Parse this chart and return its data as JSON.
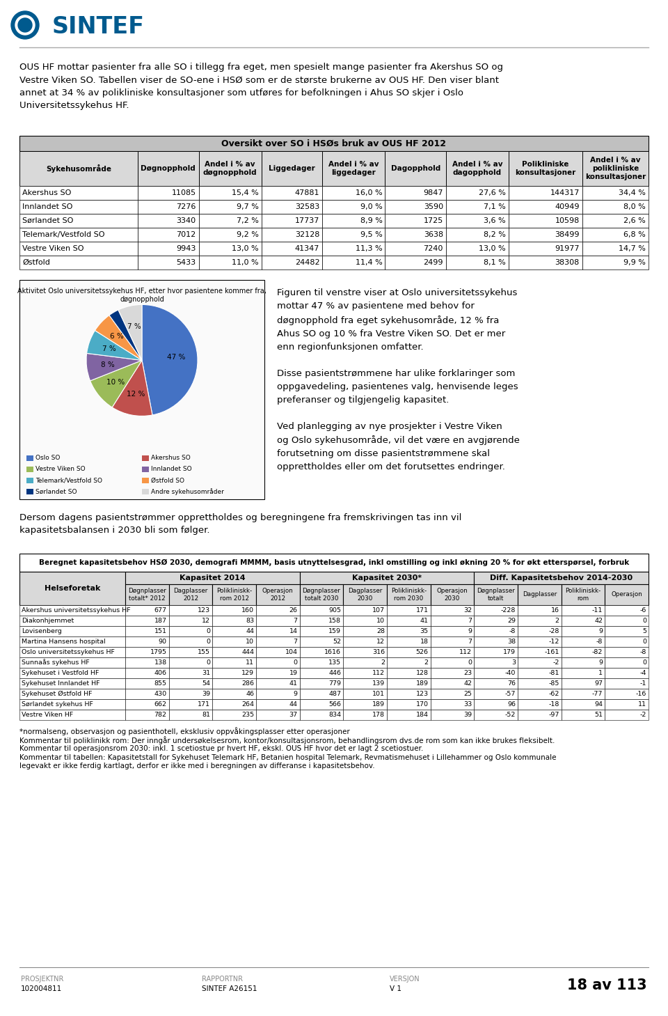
{
  "page_bg": "#ffffff",
  "intro_text": "OUS HF mottar pasienter fra alle SO i tillegg fra eget, men spesielt mange pasienter fra Akershus SO og\nVestre Viken SO. Tabellen viser de SO-ene i HSØ som er de største brukerne av OUS HF. Den viser blant\nannet at 34 % av polikliniske konsultasjoner som utføres for befolkningen i Ahus SO skjer i Oslo\nUniversitetssykehus HF.",
  "table1_title": "Oversikt over SO i HSØs bruk av OUS HF 2012",
  "table1_headers": [
    "Sykehusområde",
    "Døgnopphold",
    "Andel i % av\ndøgnopphold",
    "Liggedager",
    "Andel i % av\nliggedager",
    "Dagopphold",
    "Andel i % av\ndagopphold",
    "Polikliniske\nkonsultasjoner",
    "Andel i % av\npolikliniske\nkonsultasjoner"
  ],
  "table1_rows": [
    [
      "Akershus SO",
      "11085",
      "15,4 %",
      "47881",
      "16,0 %",
      "9847",
      "27,6 %",
      "144317",
      "34,4 %"
    ],
    [
      "Innlandet SO",
      "7276",
      "9,7 %",
      "32583",
      "9,0 %",
      "3590",
      "7,1 %",
      "40949",
      "8,0 %"
    ],
    [
      "Sørlandet SO",
      "3340",
      "7,2 %",
      "17737",
      "8,9 %",
      "1725",
      "3,6 %",
      "10598",
      "2,6 %"
    ],
    [
      "Telemark/Vestfold SO",
      "7012",
      "9,2 %",
      "32128",
      "9,5 %",
      "3638",
      "8,2 %",
      "38499",
      "6,8 %"
    ],
    [
      "Vestre Viken SO",
      "9943",
      "13,0 %",
      "41347",
      "11,3 %",
      "7240",
      "13,0 %",
      "91977",
      "14,7 %"
    ],
    [
      "Østfold",
      "5433",
      "11,0 %",
      "24482",
      "11,4 %",
      "2499",
      "8,1 %",
      "38308",
      "9,9 %"
    ]
  ],
  "pie_title": "Aktivitet Oslo universitetssykehus HF, etter hvor pasientene kommer fra,\ndøgnopphold",
  "pie_labels": [
    "Oslo SO",
    "Akershus SO",
    "Vestre Viken SO",
    "Innlandet SO",
    "Telemark/Vestfold SO",
    "Østfold SO",
    "Sørlandet SO",
    "Andre sykehusområder"
  ],
  "pie_values": [
    47,
    12,
    10,
    8,
    7,
    6,
    3,
    7
  ],
  "pie_colors": [
    "#4472C4",
    "#C0504D",
    "#9BBB59",
    "#8064A2",
    "#4BACC6",
    "#F79646",
    "#003580",
    "#D9D9D9"
  ],
  "pie_right_text": "Figuren til venstre viser at Oslo universitetssykehus\nmottar 47 % av pasientene med behov for\ndøgnopphold fra eget sykehusområde, 12 % fra\nAhus SO og 10 % fra Vestre Viken SO. Det er mer\nenn regionfunksjonen omfatter.\n\nDisse pasientstrømmene har ulike forklaringer som\noppgavedeling, pasientenes valg, henvisende leges\npreferanser og tilgjengelig kapasitet.\n\nVed planlegging av nye prosjekter i Vestre Viken\nog Oslo sykehusområde, vil det være en avgjørende\nforutsetning om disse pasientstrømmene skal\nopprettholdes eller om det forutsettes endringer.",
  "bottom_text": "Dersom dagens pasientstrømmer opprettholdes og beregningene fra fremskrivingen tas inn vil\nkapasitetsbalansen i 2030 bli som følger.",
  "table2_title": "Beregnet kapasitetsbehov HSØ 2030, demografi MMMM, basis utnyttelsesgrad, inkl omstilling og inkl økning 20 % for økt etterspørsel, forbruk",
  "table2_col_groups": [
    "Kapasitet 2014",
    "Kapasitet 2030*",
    "Diff. Kapasitetsbehov 2014-2030"
  ],
  "table2_sub_headers": [
    "Døgnplasser\ntotalt* 2012",
    "Dagplasser\n2012",
    "Polikliniskk-\nrom 2012",
    "Operasjon\n2012",
    "Døgnplasser\ntotalt 2030",
    "Dagplasser\n2030",
    "Polikliniskk-\nrom 2030",
    "Operasjon\n2030",
    "Døgnplasser\ntotalt",
    "Dagplasser",
    "Polikliniskk-\nrom",
    "Operasjon"
  ],
  "table2_rows": [
    [
      "Akershus universitetssykehus HF",
      "677",
      "123",
      "160",
      "26",
      "905",
      "107",
      "171",
      "32",
      "-228",
      "16",
      "-11",
      "-6"
    ],
    [
      "Diakonhjemmet",
      "187",
      "12",
      "83",
      "7",
      "158",
      "10",
      "41",
      "7",
      "29",
      "2",
      "42",
      "0"
    ],
    [
      "Lovisenberg",
      "151",
      "0",
      "44",
      "14",
      "159",
      "28",
      "35",
      "9",
      "-8",
      "-28",
      "9",
      "5"
    ],
    [
      "Martina Hansens hospital",
      "90",
      "0",
      "10",
      "7",
      "52",
      "12",
      "18",
      "7",
      "38",
      "-12",
      "-8",
      "0"
    ],
    [
      "Oslo universitetssykehus HF",
      "1795",
      "155",
      "444",
      "104",
      "1616",
      "316",
      "526",
      "112",
      "179",
      "-161",
      "-82",
      "-8"
    ],
    [
      "Sunnaås sykehus HF",
      "138",
      "0",
      "11",
      "0",
      "135",
      "2",
      "2",
      "0",
      "3",
      "-2",
      "9",
      "0"
    ],
    [
      "Sykehuset i Vestfold HF",
      "406",
      "31",
      "129",
      "19",
      "446",
      "112",
      "128",
      "23",
      "-40",
      "-81",
      "1",
      "-4"
    ],
    [
      "Sykehuset Innlandet HF",
      "855",
      "54",
      "286",
      "41",
      "779",
      "139",
      "189",
      "42",
      "76",
      "-85",
      "97",
      "-1"
    ],
    [
      "Sykehuset Østfold HF",
      "430",
      "39",
      "46",
      "9",
      "487",
      "101",
      "123",
      "25",
      "-57",
      "-62",
      "-77",
      "-16"
    ],
    [
      "Sørlandet sykehus HF",
      "662",
      "171",
      "264",
      "44",
      "566",
      "189",
      "170",
      "33",
      "96",
      "-18",
      "94",
      "11"
    ],
    [
      "Vestre Viken HF",
      "782",
      "81",
      "235",
      "37",
      "834",
      "178",
      "184",
      "39",
      "-52",
      "-97",
      "51",
      "-2"
    ]
  ],
  "table2_footnotes": [
    "*normalseng, observasjon og pasienthotell, eksklusiv oppvåkingsplasser etter operasjoner",
    "Kommentar til poliklinikk rom: Der inngår undersøkelsesrom, kontor/konsultasjonsrom, behandlingsrom dvs.de rom som kan ikke brukes fleksibelt.",
    "Kommentar til operasjonsrom 2030: inkl. 1 scetiostue pr hvert HF, ekskl. OUS HF hvor det er lagt 2 scetiostuer.",
    "Kommentar til tabellen: Kapasitetstall for Sykehuset Telemark HF, Betanien hospital Telemark, Revmatismehuset i Lillehammer og Oslo kommunale\nlegevakt er ikke ferdig kartlagt, derfor er ikke med i beregningen av differanse i kapasitetsbehov."
  ],
  "footer_left1": "PROSJEKTNR",
  "footer_left2": "102004811",
  "footer_mid1": "RAPPORTNR",
  "footer_mid2": "SINTEF A26151",
  "footer_right1": "VERSJON",
  "footer_right2": "V 1",
  "footer_page": "18 av 113",
  "sintef_blue": "#005A8E"
}
